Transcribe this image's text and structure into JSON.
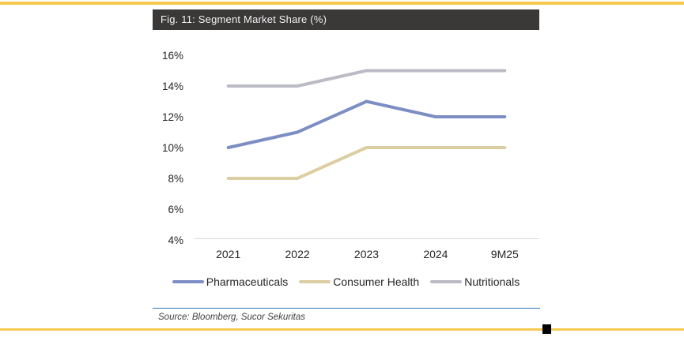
{
  "page": {
    "accent_color": "#F7C94F",
    "title_bar_color": "#3B3838",
    "marker_color": "#000000"
  },
  "figure": {
    "title": "Fig. 11: Segment Market Share (%)",
    "source": "Source: Bloomberg, Sucor Sekuritas"
  },
  "chart_data": {
    "type": "line",
    "title": "Fig. 11: Segment Market Share (%)",
    "categories": [
      "2021",
      "2022",
      "2023",
      "2024",
      "9M25"
    ],
    "series": [
      {
        "name": "Pharmaceuticals",
        "color": "#7D8EC4",
        "values": [
          10,
          11,
          13,
          12,
          12
        ]
      },
      {
        "name": "Consumer Health",
        "color": "#DCCEA3",
        "values": [
          8,
          8,
          10,
          10,
          10
        ]
      },
      {
        "name": "Nutritionals",
        "color": "#BBBBC6",
        "values": [
          14,
          14,
          15,
          15,
          15
        ]
      }
    ],
    "xlabel": "",
    "ylabel": "",
    "ylim": [
      4,
      16
    ],
    "ytick_step": 2,
    "ytick_suffix": "%",
    "grid": false,
    "legend_position": "bottom",
    "source": "Source: Bloomberg, Sucor Sekuritas"
  }
}
